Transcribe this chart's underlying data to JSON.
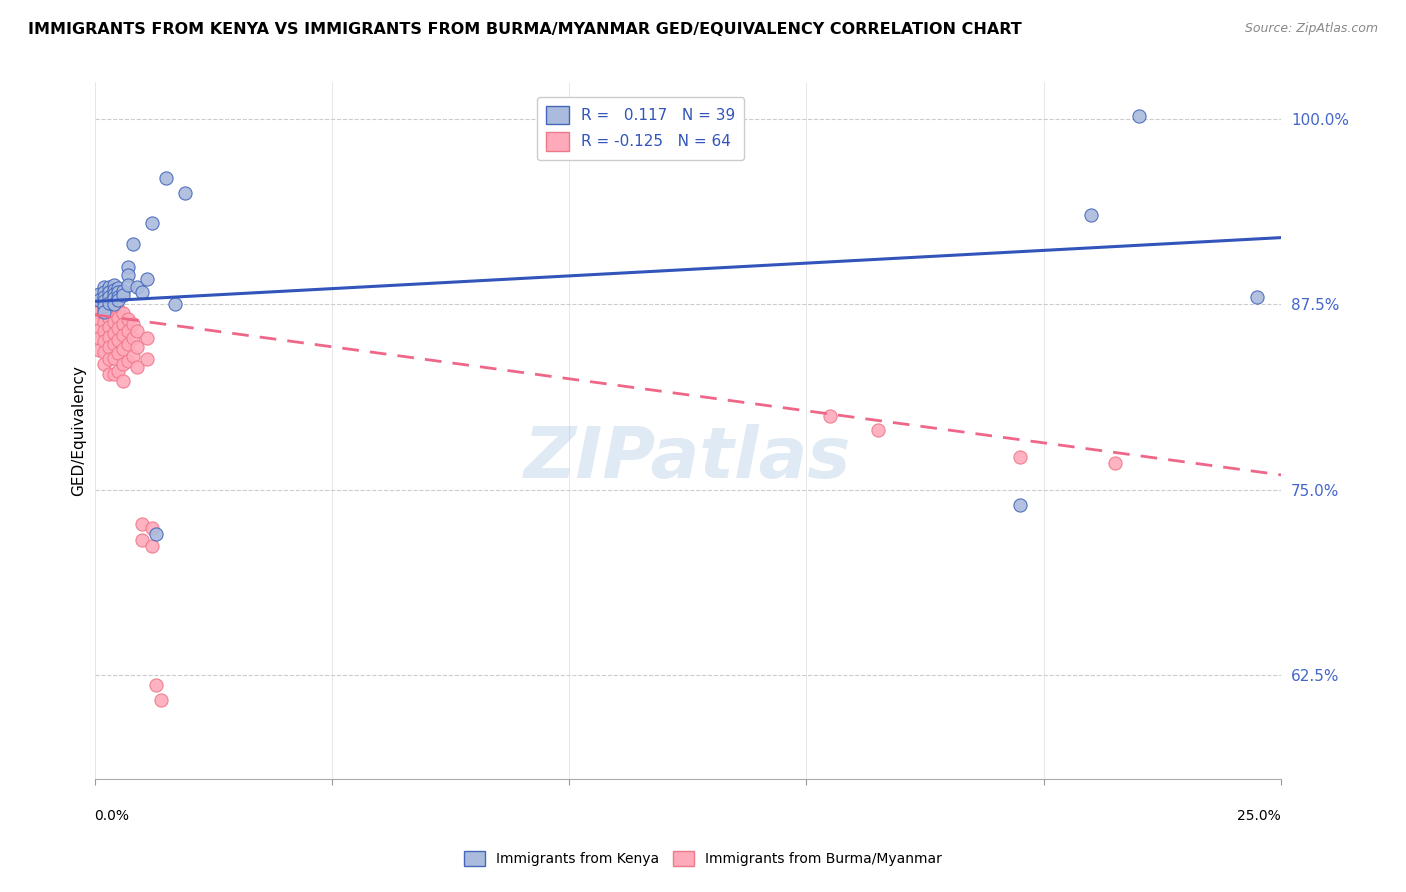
{
  "title": "IMMIGRANTS FROM KENYA VS IMMIGRANTS FROM BURMA/MYANMAR GED/EQUIVALENCY CORRELATION CHART",
  "source": "Source: ZipAtlas.com",
  "ylabel": "GED/Equivalency",
  "yticks_vals": [
    0.625,
    0.75,
    0.875,
    1.0
  ],
  "yticks_labels": [
    "62.5%",
    "75.0%",
    "87.5%",
    "100.0%"
  ],
  "legend_kenya": "Immigrants from Kenya",
  "legend_burma": "Immigrants from Burma/Myanmar",
  "R_kenya": 0.117,
  "N_kenya": 39,
  "R_burma": -0.125,
  "N_burma": 64,
  "kenya_face_color": "#aabbdd",
  "kenya_edge_color": "#4466bb",
  "burma_face_color": "#ffaabb",
  "burma_edge_color": "#ee7788",
  "kenya_line_color": "#3355bb",
  "burma_line_color": "#ee6688",
  "ytick_color": "#4466cc",
  "watermark": "ZIPatlas",
  "kenya_x": [
    0.001,
    0.001,
    0.002,
    0.002,
    0.002,
    0.002,
    0.002,
    0.002,
    0.003,
    0.003,
    0.003,
    0.003,
    0.004,
    0.004,
    0.004,
    0.004,
    0.004,
    0.005,
    0.005,
    0.005,
    0.005,
    0.006,
    0.006,
    0.007,
    0.007,
    0.007,
    0.008,
    0.009,
    0.01,
    0.011,
    0.012,
    0.013,
    0.015,
    0.017,
    0.019,
    0.195,
    0.21,
    0.22,
    0.245
  ],
  "kenya_y": [
    0.882,
    0.878,
    0.887,
    0.883,
    0.88,
    0.877,
    0.874,
    0.87,
    0.887,
    0.883,
    0.88,
    0.876,
    0.888,
    0.885,
    0.882,
    0.879,
    0.875,
    0.886,
    0.883,
    0.88,
    0.878,
    0.884,
    0.881,
    0.9,
    0.895,
    0.888,
    0.916,
    0.887,
    0.883,
    0.892,
    0.93,
    0.72,
    0.96,
    0.875,
    0.95,
    0.74,
    0.935,
    1.002,
    0.88
  ],
  "burma_x": [
    0.001,
    0.001,
    0.001,
    0.001,
    0.001,
    0.001,
    0.001,
    0.002,
    0.002,
    0.002,
    0.002,
    0.002,
    0.002,
    0.002,
    0.002,
    0.003,
    0.003,
    0.003,
    0.003,
    0.003,
    0.003,
    0.003,
    0.003,
    0.004,
    0.004,
    0.004,
    0.004,
    0.004,
    0.004,
    0.004,
    0.005,
    0.005,
    0.005,
    0.005,
    0.005,
    0.005,
    0.006,
    0.006,
    0.006,
    0.006,
    0.006,
    0.006,
    0.007,
    0.007,
    0.007,
    0.007,
    0.008,
    0.008,
    0.008,
    0.009,
    0.009,
    0.009,
    0.01,
    0.01,
    0.011,
    0.011,
    0.012,
    0.012,
    0.013,
    0.014,
    0.155,
    0.165,
    0.195,
    0.215
  ],
  "burma_y": [
    0.878,
    0.874,
    0.87,
    0.865,
    0.858,
    0.852,
    0.844,
    0.876,
    0.872,
    0.868,
    0.863,
    0.857,
    0.85,
    0.843,
    0.835,
    0.875,
    0.871,
    0.866,
    0.86,
    0.853,
    0.846,
    0.838,
    0.828,
    0.874,
    0.869,
    0.863,
    0.856,
    0.848,
    0.839,
    0.828,
    0.872,
    0.866,
    0.859,
    0.851,
    0.842,
    0.83,
    0.869,
    0.862,
    0.854,
    0.845,
    0.835,
    0.823,
    0.865,
    0.857,
    0.848,
    0.837,
    0.862,
    0.852,
    0.84,
    0.857,
    0.846,
    0.833,
    0.727,
    0.716,
    0.852,
    0.838,
    0.724,
    0.712,
    0.618,
    0.608,
    0.8,
    0.79,
    0.772,
    0.768
  ],
  "xlim": [
    0.0,
    0.25
  ],
  "ylim": [
    0.555,
    1.025
  ],
  "kenya_trend_x": [
    0.0,
    0.25
  ],
  "kenya_trend_y": [
    0.877,
    0.92
  ],
  "burma_trend_x": [
    0.0,
    0.25
  ],
  "burma_trend_y": [
    0.868,
    0.76
  ]
}
